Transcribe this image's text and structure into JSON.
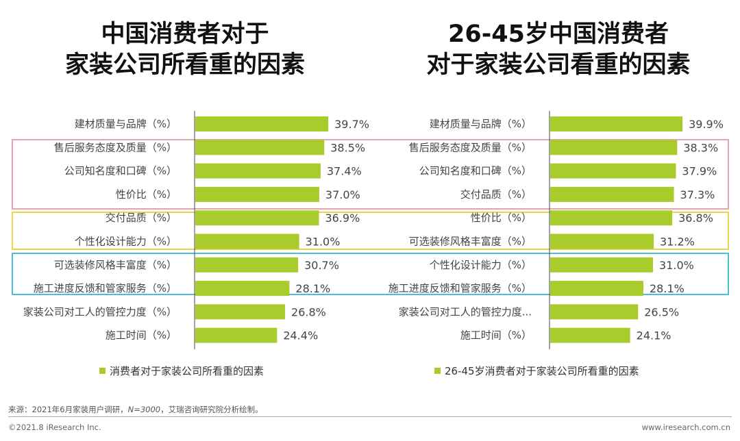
{
  "colors": {
    "bar": "#a8cc2c",
    "box_pink": "#e8a4ad",
    "box_yellow": "#efd24a",
    "box_blue": "#4cbcd8"
  },
  "chart_data": [
    {
      "type": "bar",
      "orientation": "horizontal",
      "title_lines": [
        "中国消费者对于",
        "家装公司所看重的因素"
      ],
      "categories": [
        "建材质量与品牌（%）",
        "售后服务态度及质量（%）",
        "公司知名度和口碑（%）",
        "性价比（%）",
        "交付品质（%）",
        "个性化设计能力（%）",
        "可选装修风格丰富度（%）",
        "施工进度反馈和管家服务（%）",
        "家装公司对工人的管控力度（%）",
        "施工时间（%）"
      ],
      "series": [
        {
          "name": "消费者对于家装公司所看重的因素",
          "values": [
            39.7,
            38.5,
            37.4,
            37.0,
            36.9,
            31.0,
            30.7,
            28.1,
            26.8,
            24.4
          ]
        }
      ],
      "data_labels": [
        "39.7%",
        "38.5%",
        "37.4%",
        "37.0%",
        "36.9%",
        "31.0%",
        "30.7%",
        "28.1%",
        "26.8%",
        "24.4%"
      ],
      "legend": "bottom"
    },
    {
      "type": "bar",
      "orientation": "horizontal",
      "title_lines": [
        "26-45岁中国消费者",
        "对于家装公司看重的因素"
      ],
      "categories": [
        "建材质量与品牌（%）",
        "售后服务态度及质量（%）",
        "公司知名度和口碑（%）",
        "交付品质（%）",
        "性价比（%）",
        "可选装修风格丰富度（%）",
        "个性化设计能力（%）",
        "施工进度反馈和管家服务（%）",
        "家装公司对工人的管控力度...",
        "施工时间（%）"
      ],
      "series": [
        {
          "name": "26-45岁消费者对于家装公司所看重的因素",
          "values": [
            39.9,
            38.3,
            37.9,
            37.3,
            36.8,
            31.2,
            31.0,
            28.1,
            26.5,
            24.1
          ]
        }
      ],
      "data_labels": [
        "39.9%",
        "38.3%",
        "37.9%",
        "37.3%",
        "36.8%",
        "31.2%",
        "31.0%",
        "28.1%",
        "26.5%",
        "24.1%"
      ],
      "legend": "bottom"
    }
  ],
  "footer": {
    "source_prefix": "来源：2021年6月家装用户调研，",
    "source_n": "N=3000",
    "source_suffix": "，艾瑞咨询研究院分析绘制。",
    "copyright": "©2021.8 iResearch Inc.",
    "website": "www.iresearch.com.cn"
  }
}
